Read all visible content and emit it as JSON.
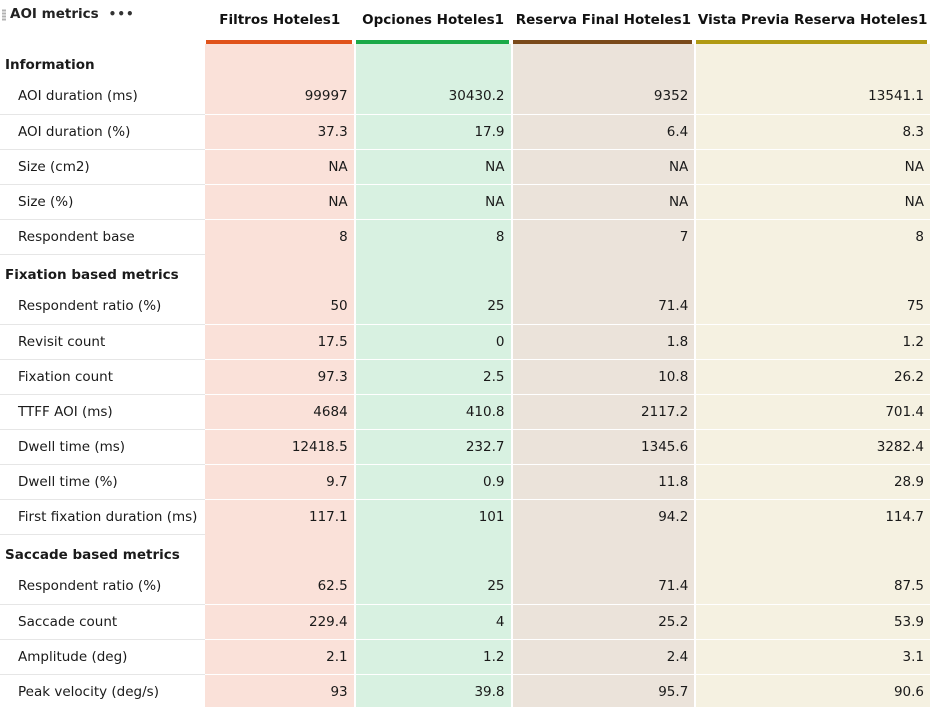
{
  "panel": {
    "title": "AOI metrics",
    "menu_dots": "•••"
  },
  "columns": [
    {
      "label": "Filtros Hoteles1",
      "color": "#e0521a"
    },
    {
      "label": "Opciones Hoteles1",
      "color": "#1aaa48"
    },
    {
      "label": "Reserva Final Hoteles1",
      "color": "#7a4a1a"
    },
    {
      "label": "Vista Previa Reserva Hoteles1",
      "color": "#b09a12"
    }
  ],
  "sections": [
    {
      "title": "Information",
      "rows": [
        {
          "label": "AOI duration (ms)",
          "values": [
            "99997",
            "30430.2",
            "9352",
            "13541.1"
          ]
        },
        {
          "label": "AOI duration (%)",
          "values": [
            "37.3",
            "17.9",
            "6.4",
            "8.3"
          ]
        },
        {
          "label": "Size (cm2)",
          "values": [
            "NA",
            "NA",
            "NA",
            "NA"
          ]
        },
        {
          "label": "Size (%)",
          "values": [
            "NA",
            "NA",
            "NA",
            "NA"
          ]
        },
        {
          "label": "Respondent base",
          "values": [
            "8",
            "8",
            "7",
            "8"
          ]
        }
      ]
    },
    {
      "title": "Fixation based metrics",
      "rows": [
        {
          "label": "Respondent ratio (%)",
          "values": [
            "50",
            "25",
            "71.4",
            "75"
          ]
        },
        {
          "label": "Revisit count",
          "values": [
            "17.5",
            "0",
            "1.8",
            "1.2"
          ]
        },
        {
          "label": "Fixation count",
          "values": [
            "97.3",
            "2.5",
            "10.8",
            "26.2"
          ]
        },
        {
          "label": "TTFF AOI (ms)",
          "values": [
            "4684",
            "410.8",
            "2117.2",
            "701.4"
          ]
        },
        {
          "label": "Dwell time (ms)",
          "values": [
            "12418.5",
            "232.7",
            "1345.6",
            "3282.4"
          ]
        },
        {
          "label": "Dwell time (%)",
          "values": [
            "9.7",
            "0.9",
            "11.8",
            "28.9"
          ]
        },
        {
          "label": "First fixation duration (ms)",
          "values": [
            "117.1",
            "101",
            "94.2",
            "114.7"
          ]
        }
      ]
    },
    {
      "title": "Saccade based metrics",
      "rows": [
        {
          "label": "Respondent ratio (%)",
          "values": [
            "62.5",
            "25",
            "71.4",
            "87.5"
          ]
        },
        {
          "label": "Saccade count",
          "values": [
            "229.4",
            "4",
            "25.2",
            "53.9"
          ]
        },
        {
          "label": "Amplitude (deg)",
          "values": [
            "2.1",
            "1.2",
            "2.4",
            "3.1"
          ]
        },
        {
          "label": "Peak velocity (deg/s)",
          "values": [
            "93",
            "39.8",
            "95.7",
            "90.6"
          ]
        }
      ]
    }
  ]
}
